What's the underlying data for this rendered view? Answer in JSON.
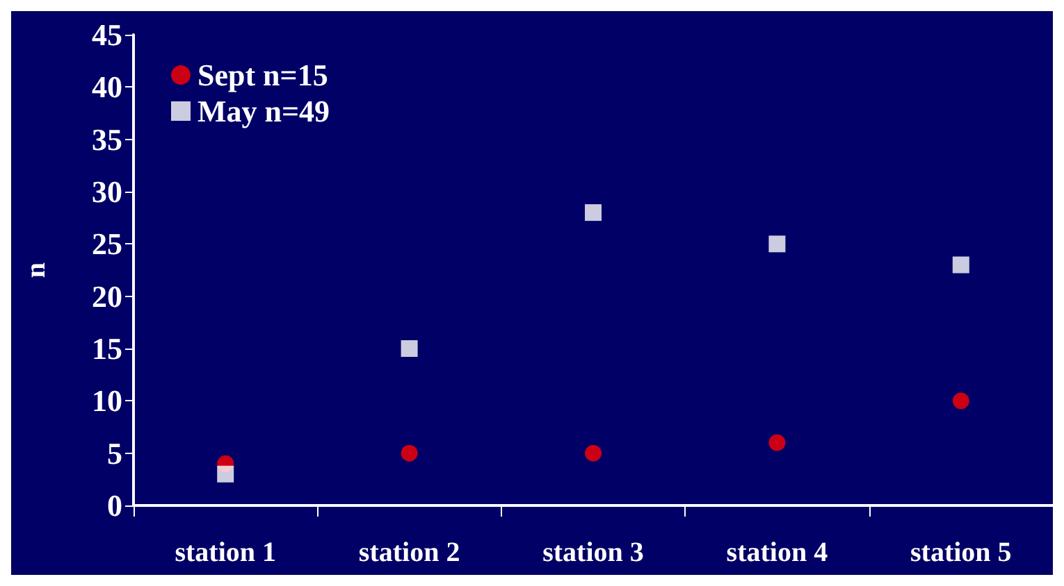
{
  "chart_data": {
    "type": "scatter",
    "ylabel": "n",
    "categories": [
      "station 1",
      "station 2",
      "station 3",
      "station 4",
      "station 5"
    ],
    "series": [
      {
        "name": "Sept n=15",
        "color": "#ff0000",
        "marker": "circle",
        "values": [
          4,
          5,
          5,
          6,
          10
        ]
      },
      {
        "name": "May n=49",
        "color": "#ffffff",
        "marker": "square",
        "values": [
          3,
          15,
          28,
          25,
          23
        ]
      }
    ],
    "ylim": [
      0,
      45
    ],
    "yticks": [
      0,
      5,
      10,
      15,
      20,
      25,
      30,
      35,
      40,
      45
    ],
    "grid": false,
    "legend": "top left"
  }
}
